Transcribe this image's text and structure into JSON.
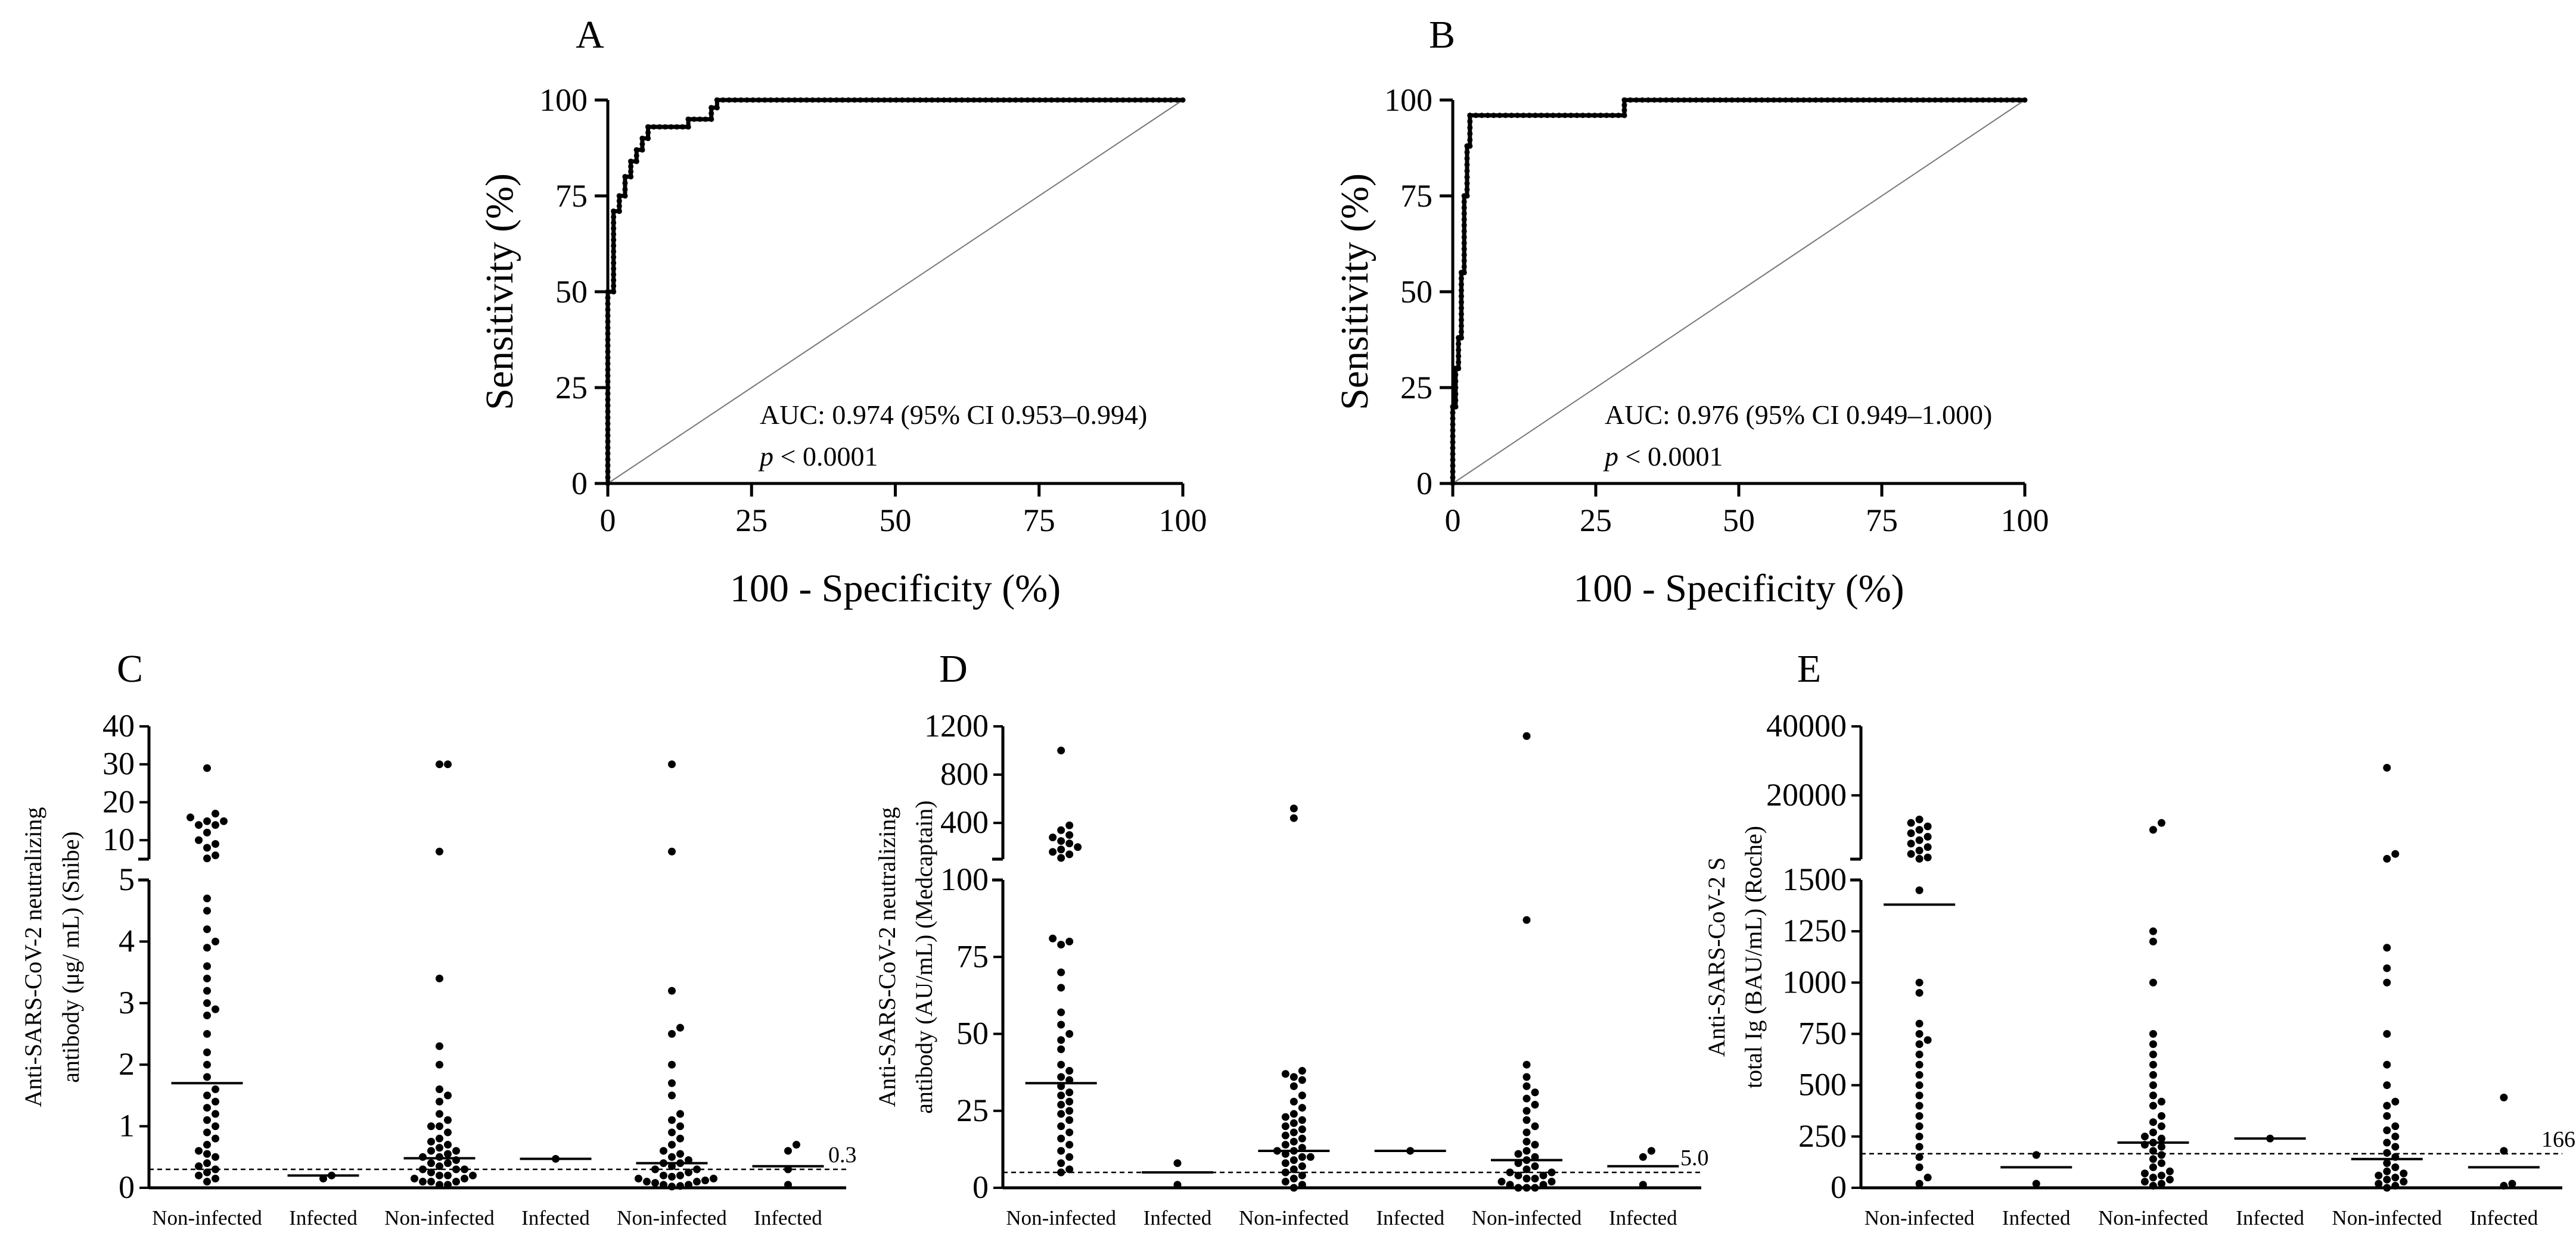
{
  "chart_data": [
    {
      "panel": "A",
      "type": "line",
      "xlabel": "100 - Specificity (%)",
      "ylabel": "Sensitivity (%)",
      "xlim": [
        0,
        100
      ],
      "ylim": [
        0,
        100
      ],
      "xticks": [
        "0",
        "25",
        "50",
        "75",
        "100"
      ],
      "yticks": [
        "0",
        "25",
        "50",
        "75",
        "100"
      ],
      "annotation": "AUC: 0.974 (95% CI 0.953–0.994)",
      "p_label": "p",
      "p_value": "< 0.0001",
      "series": [
        {
          "name": "ROC",
          "x": [
            0,
            0,
            1,
            1,
            2,
            2,
            3,
            3,
            4,
            4,
            5,
            5,
            6,
            6,
            7,
            7,
            14,
            14,
            18,
            18,
            19,
            19,
            100
          ],
          "y": [
            0,
            50,
            50,
            71,
            71,
            75,
            75,
            80,
            80,
            84,
            84,
            87,
            87,
            90,
            90,
            93,
            93,
            95,
            95,
            98,
            98,
            100,
            100
          ]
        },
        {
          "name": "reference",
          "x": [
            0,
            100
          ],
          "y": [
            0,
            100
          ]
        }
      ]
    },
    {
      "panel": "B",
      "type": "line",
      "xlabel": "100 - Specificity (%)",
      "ylabel": "Sensitivity (%)",
      "xlim": [
        0,
        100
      ],
      "ylim": [
        0,
        100
      ],
      "xticks": [
        "0",
        "25",
        "50",
        "75",
        "100"
      ],
      "yticks": [
        "0",
        "25",
        "50",
        "75",
        "100"
      ],
      "annotation": "AUC: 0.976 (95% CI 0.949–1.000)",
      "p_label": "p",
      "p_value": "< 0.0001",
      "series": [
        {
          "name": "ROC",
          "x": [
            0,
            0,
            0.5,
            0.5,
            1,
            1,
            1.5,
            1.5,
            2,
            2,
            2.5,
            2.5,
            3,
            3,
            30,
            30,
            100
          ],
          "y": [
            0,
            20,
            20,
            30,
            30,
            38,
            38,
            55,
            55,
            75,
            75,
            88,
            88,
            96,
            96,
            100,
            100
          ]
        },
        {
          "name": "reference",
          "x": [
            0,
            100
          ],
          "y": [
            0,
            100
          ]
        }
      ]
    },
    {
      "panel": "C",
      "type": "scatter",
      "ylabel_line1": "Anti-SARS-CoV-2 neutralizing",
      "ylabel_line2": "antibody (μg/ mL) (Snibe)",
      "categories": [
        "Non-infected",
        "Infected",
        "Non-infected",
        "Infected",
        "Non-infected",
        "Infected"
      ],
      "yticks_lower": [
        "0",
        "1",
        "2",
        "3",
        "4",
        "5"
      ],
      "yticks_upper": [
        "10",
        "20",
        "30",
        "40"
      ],
      "ylim_lower": [
        0,
        5
      ],
      "ylim_upper": [
        5,
        40
      ],
      "cutoff": 0.3,
      "cutoff_label": "0.3",
      "groups": [
        {
          "values": [
            0.1,
            0.15,
            0.2,
            0.25,
            0.3,
            0.35,
            0.4,
            0.5,
            0.55,
            0.6,
            0.7,
            0.8,
            0.9,
            1.0,
            1.1,
            1.2,
            1.3,
            1.4,
            1.5,
            1.6,
            1.8,
            2.0,
            2.2,
            2.5,
            2.8,
            2.9,
            3.0,
            3.2,
            3.4,
            3.6,
            3.9,
            4.0,
            4.2,
            4.5,
            4.7,
            5.2,
            6.0,
            8.0,
            9.0,
            10,
            12,
            14,
            14,
            15,
            15,
            16,
            17,
            29
          ],
          "median": 1.7
        },
        {
          "values": [
            0.15,
            0.2
          ],
          "median": 0.2
        },
        {
          "values": [
            0.05,
            0.05,
            0.1,
            0.1,
            0.1,
            0.15,
            0.15,
            0.2,
            0.2,
            0.2,
            0.25,
            0.3,
            0.3,
            0.3,
            0.35,
            0.4,
            0.4,
            0.45,
            0.5,
            0.5,
            0.55,
            0.6,
            0.6,
            0.65,
            0.7,
            0.75,
            0.8,
            0.9,
            1.0,
            1.0,
            1.1,
            1.2,
            1.4,
            1.5,
            1.6,
            2.0,
            2.3,
            3.4,
            7.0,
            30,
            30
          ],
          "median": 0.48
        },
        {
          "values": [
            0.47
          ],
          "median": 0.47
        },
        {
          "values": [
            0.02,
            0.03,
            0.05,
            0.05,
            0.08,
            0.1,
            0.1,
            0.12,
            0.15,
            0.15,
            0.18,
            0.2,
            0.2,
            0.25,
            0.3,
            0.3,
            0.35,
            0.4,
            0.4,
            0.45,
            0.5,
            0.55,
            0.6,
            0.7,
            0.8,
            0.9,
            1.0,
            1.1,
            1.2,
            1.5,
            1.7,
            2.0,
            2.5,
            2.6,
            3.2,
            7.0,
            30
          ],
          "median": 0.4
        },
        {
          "values": [
            0.05,
            0.3,
            0.6,
            0.7
          ],
          "median": 0.35
        }
      ]
    },
    {
      "panel": "D",
      "type": "scatter",
      "ylabel_line1": "Anti-SARS-CoV-2 neutralizing",
      "ylabel_line2": "antibody (AU/mL) (Medcaptain)",
      "categories": [
        "Non-infected",
        "Infected",
        "Non-infected",
        "Infected",
        "Non-infected",
        "Infected"
      ],
      "yticks_lower": [
        "0",
        "25",
        "50",
        "75",
        "100"
      ],
      "yticks_upper": [
        "400",
        "800",
        "1200"
      ],
      "ylim_lower": [
        0,
        100
      ],
      "ylim_upper": [
        100,
        1200
      ],
      "cutoff": 5.0,
      "cutoff_label": "5.0",
      "groups": [
        {
          "values": [
            5,
            6,
            8,
            10,
            12,
            14,
            16,
            18,
            20,
            22,
            24,
            25,
            27,
            28,
            30,
            31,
            33,
            35,
            36,
            38,
            40,
            45,
            48,
            50,
            53,
            57,
            65,
            70,
            79,
            80,
            81,
            110,
            140,
            160,
            180,
            200,
            230,
            250,
            280,
            300,
            340,
            380,
            1000
          ],
          "median": 34
        },
        {
          "values": [
            1,
            8
          ],
          "median": 5
        },
        {
          "values": [
            0,
            1,
            2,
            3,
            4,
            5,
            6,
            7,
            8,
            9,
            10,
            10,
            11,
            12,
            12,
            13,
            14,
            15,
            16,
            17,
            18,
            19,
            20,
            21,
            22,
            23,
            24,
            26,
            28,
            30,
            33,
            35,
            36,
            37,
            38,
            440,
            520
          ],
          "median": 12
        },
        {
          "values": [
            12
          ],
          "median": 12
        },
        {
          "values": [
            0,
            0,
            0,
            1,
            1,
            2,
            2,
            3,
            3,
            4,
            4,
            5,
            5,
            6,
            7,
            8,
            9,
            10,
            11,
            12,
            14,
            15,
            18,
            20,
            22,
            25,
            27,
            29,
            31,
            33,
            36,
            40,
            87,
            1120
          ],
          "median": 9
        },
        {
          "values": [
            1,
            10,
            12
          ],
          "median": 7
        }
      ]
    },
    {
      "panel": "E",
      "type": "scatter",
      "ylabel_line1": "Anti-SARS-CoV-2 S",
      "ylabel_line2": "total Ig (BAU/mL) (Roche)",
      "categories": [
        "Non-infected",
        "Infected",
        "Non-infected",
        "Infected",
        "Non-infected",
        "Infected"
      ],
      "yticks_lower": [
        "0",
        "250",
        "500",
        "750",
        "1000",
        "1250",
        "1500"
      ],
      "yticks_upper": [
        "20000",
        "40000"
      ],
      "ylim_lower": [
        0,
        1500
      ],
      "ylim_upper": [
        1500,
        40000
      ],
      "cutoff": 166,
      "cutoff_label": "166",
      "groups": [
        {
          "values": [
            20,
            50,
            100,
            150,
            200,
            250,
            300,
            350,
            400,
            450,
            500,
            550,
            600,
            650,
            700,
            720,
            750,
            800,
            950,
            1000,
            1450,
            1600,
            2000,
            3000,
            4000,
            5000,
            6000,
            7000,
            8000,
            9000,
            10000,
            11000,
            12000,
            13000
          ],
          "median": 1380
        },
        {
          "values": [
            20,
            160
          ],
          "median": 100
        },
        {
          "values": [
            10,
            20,
            30,
            40,
            50,
            60,
            70,
            80,
            100,
            120,
            140,
            160,
            180,
            200,
            210,
            220,
            240,
            250,
            270,
            300,
            320,
            350,
            400,
            420,
            450,
            500,
            550,
            600,
            650,
            700,
            750,
            1000,
            1200,
            1250,
            10000,
            12000
          ],
          "median": 220
        },
        {
          "values": [
            240
          ],
          "median": 240
        },
        {
          "values": [
            0,
            10,
            20,
            30,
            40,
            50,
            60,
            70,
            80,
            100,
            120,
            150,
            170,
            200,
            220,
            250,
            280,
            300,
            350,
            400,
            420,
            500,
            600,
            750,
            1000,
            1070,
            1170,
            1600,
            3000,
            28000
          ],
          "median": 140
        },
        {
          "values": [
            10,
            20,
            180,
            440
          ],
          "median": 100
        }
      ]
    }
  ]
}
